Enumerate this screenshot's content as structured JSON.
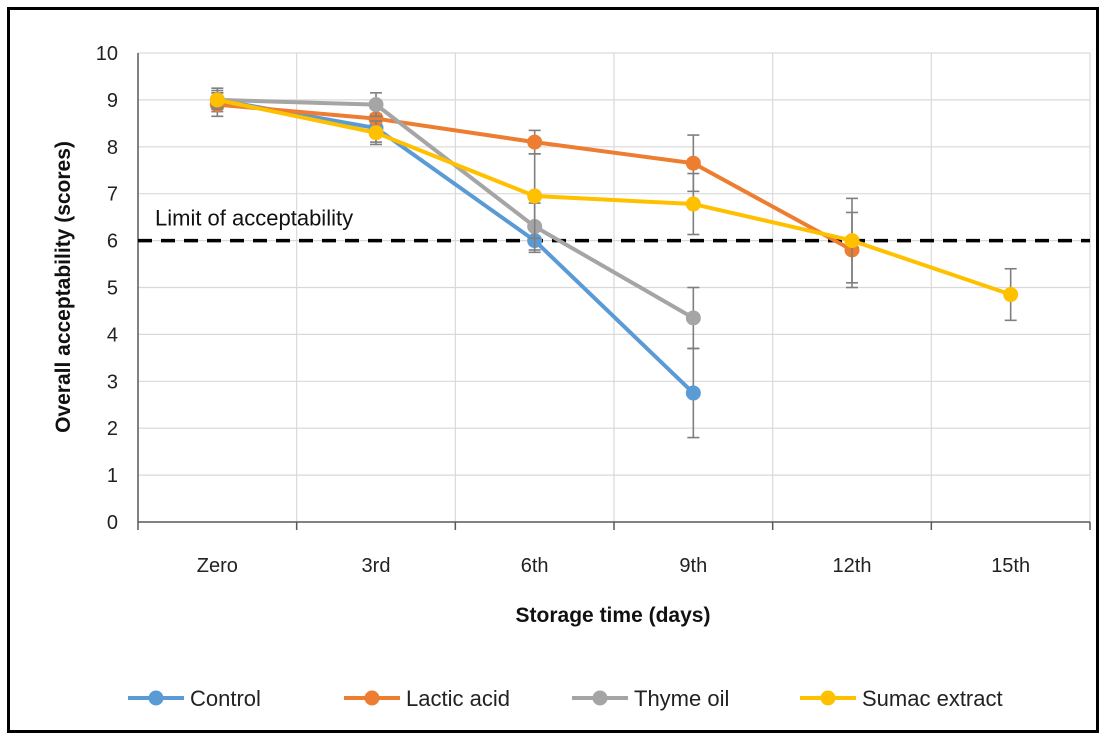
{
  "chart_data": {
    "type": "line",
    "xlabel": "Storage time (days)",
    "ylabel": "Overall acceptability (scores)",
    "categories": [
      "Zero",
      "3rd",
      "6th",
      "9th",
      "12th",
      "15th"
    ],
    "ylim": [
      0,
      10
    ],
    "yticks": [
      0,
      1,
      2,
      3,
      4,
      5,
      6,
      7,
      8,
      9,
      10
    ],
    "grid": true,
    "legend_position": "bottom",
    "reference_line": {
      "y": 6,
      "label": "Limit of acceptability",
      "style": "dashed",
      "color": "#000000"
    },
    "series": [
      {
        "name": "Control",
        "color": "#5B9BD5",
        "values": [
          9.0,
          8.4,
          6.0,
          2.75,
          null,
          null
        ],
        "errors": [
          0.25,
          0.3,
          0.25,
          0.95,
          null,
          null
        ]
      },
      {
        "name": "Lactic acid",
        "color": "#ED7D31",
        "values": [
          8.9,
          8.6,
          8.1,
          7.65,
          5.8,
          null
        ],
        "errors": [
          0.25,
          0.3,
          0.25,
          0.6,
          0.8,
          null
        ]
      },
      {
        "name": "Thyme oil",
        "color": "#A5A5A5",
        "values": [
          9.0,
          8.9,
          6.3,
          4.35,
          null,
          null
        ],
        "errors": [
          0.15,
          0.25,
          0.5,
          0.65,
          null,
          null
        ]
      },
      {
        "name": "Sumac extract",
        "color": "#FFC000",
        "values": [
          9.0,
          8.3,
          6.95,
          6.78,
          6.0,
          4.85
        ],
        "errors": [
          0.2,
          0.25,
          0.9,
          0.65,
          0.9,
          0.55
        ]
      }
    ]
  }
}
